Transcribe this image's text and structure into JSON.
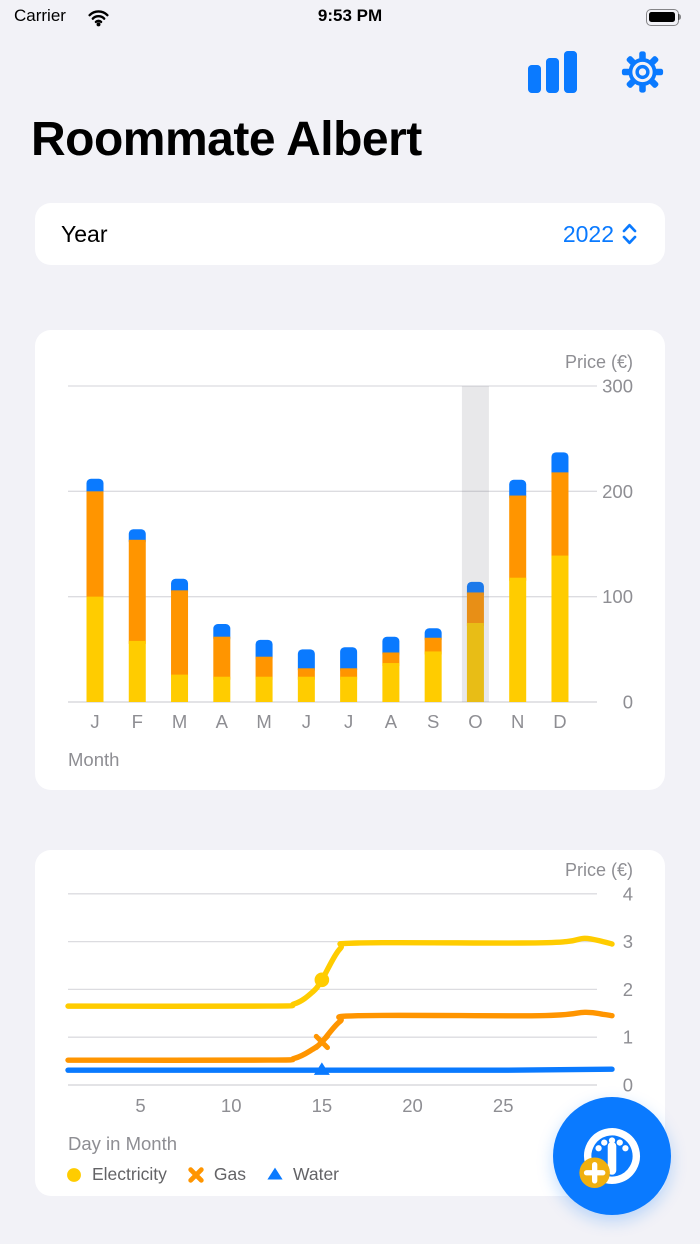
{
  "status_bar": {
    "carrier": "Carrier",
    "time": "9:53 PM",
    "wifi_icon": "wifi-icon",
    "battery_icon": "battery-icon"
  },
  "toolbar": {
    "stats_icon": "bar-chart-icon",
    "settings_icon": "gear-icon"
  },
  "header": {
    "title": "Roommate Albert"
  },
  "year_selector": {
    "label": "Year",
    "value": "2022",
    "picker_icon": "chevron-up-down-icon"
  },
  "colors": {
    "accent_blue": "#0A7AFF",
    "electricity_yellow": "#FFCC00",
    "gas_orange": "#FF9500",
    "water_blue": "#0A7AFF",
    "text_gray": "#8E8E93",
    "legend_text": "#636366",
    "gridline": "#DCDCE0",
    "axis_line": "#D2D2D7",
    "background": "#F2F2F7",
    "card": "#FFFFFF",
    "highlight_band": "rgba(120,120,128,0.17)"
  },
  "chart_data": [
    {
      "type": "bar",
      "stacked": true,
      "title": "Price (€)",
      "xlabel": "Month",
      "categories": [
        "J",
        "F",
        "M",
        "A",
        "M",
        "J",
        "J",
        "A",
        "S",
        "O",
        "N",
        "D"
      ],
      "series": [
        {
          "name": "Electricity",
          "color": "#FFCC00",
          "values": [
            100,
            58,
            26,
            24,
            24,
            24,
            24,
            37,
            48,
            75,
            118,
            139
          ]
        },
        {
          "name": "Gas",
          "color": "#FF9500",
          "values": [
            100,
            96,
            80,
            38,
            19,
            8,
            8,
            10,
            13,
            29,
            78,
            79
          ]
        },
        {
          "name": "Water",
          "color": "#0A7AFF",
          "values": [
            12,
            10,
            11,
            12,
            16,
            18,
            20,
            15,
            9,
            10,
            15,
            19
          ]
        }
      ],
      "yticks": [
        0,
        100,
        200,
        300
      ],
      "ylim": [
        0,
        300
      ],
      "highlighted_category_index": 9,
      "legend_position": "none",
      "grid": true
    },
    {
      "type": "line",
      "title": "Price (€)",
      "xlabel": "Day in Month",
      "xlim": [
        1,
        31
      ],
      "ylim": [
        0,
        4
      ],
      "xticks": [
        5,
        10,
        15,
        20,
        25
      ],
      "yticks": [
        0,
        1,
        2,
        3,
        4
      ],
      "grid": true,
      "series": [
        {
          "name": "Electricity",
          "color": "#FFCC00",
          "marker": "circle",
          "marker_at": [
            15,
            2.2
          ],
          "points": [
            [
              1,
              1.65
            ],
            [
              12,
              1.65
            ],
            [
              13.5,
              1.7
            ],
            [
              14.5,
              1.95
            ],
            [
              15,
              2.2
            ],
            [
              16,
              2.85
            ],
            [
              17,
              2.97
            ],
            [
              26,
              2.97
            ],
            [
              28.5,
              3.0
            ],
            [
              29.5,
              3.07
            ],
            [
              30.5,
              3.0
            ],
            [
              31,
              2.95
            ]
          ]
        },
        {
          "name": "Gas",
          "color": "#FF9500",
          "marker": "x",
          "marker_at": [
            15,
            0.9
          ],
          "points": [
            [
              1,
              0.52
            ],
            [
              12,
              0.52
            ],
            [
              13.5,
              0.56
            ],
            [
              14.5,
              0.75
            ],
            [
              15,
              0.9
            ],
            [
              16,
              1.33
            ],
            [
              17,
              1.45
            ],
            [
              27,
              1.45
            ],
            [
              29.5,
              1.52
            ],
            [
              30.5,
              1.48
            ],
            [
              31,
              1.45
            ]
          ]
        },
        {
          "name": "Water",
          "color": "#0A7AFF",
          "marker": "triangle",
          "marker_at": [
            15,
            0.31
          ],
          "points": [
            [
              1,
              0.31
            ],
            [
              14,
              0.31
            ],
            [
              25,
              0.31
            ],
            [
              31,
              0.33
            ]
          ]
        }
      ],
      "legend": [
        {
          "label": "Electricity",
          "marker": "circle",
          "color": "#FFCC00"
        },
        {
          "label": "Gas",
          "marker": "x",
          "color": "#FF9500"
        },
        {
          "label": "Water",
          "marker": "triangle",
          "color": "#0A7AFF"
        }
      ],
      "legend_position": "bottom-left"
    }
  ],
  "fab": {
    "icon": "meter-gauge-icon",
    "badge_icon": "plus-icon",
    "badge_color": "#F0B010"
  }
}
